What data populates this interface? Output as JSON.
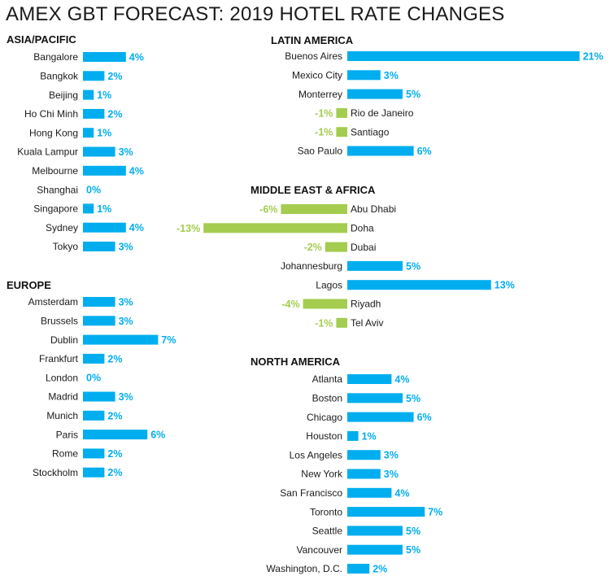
{
  "title": "AMEX GBT FORECAST: 2019 HOTEL RATE CHANGES",
  "colors": {
    "positive": "#00aeef",
    "negative": "#a4cc4f",
    "text": "#1a1a1a"
  },
  "chart_data": [
    {
      "type": "bar",
      "orientation": "horizontal",
      "title": "ASIA/PACIFIC",
      "unit": "%",
      "categories": [
        "Bangalore",
        "Bangkok",
        "Beijing",
        "Ho Chi Minh",
        "Hong Kong",
        "Kuala Lampur",
        "Melbourne",
        "Shanghai",
        "Singapore",
        "Sydney",
        "Tokyo"
      ],
      "values": [
        4,
        2,
        1,
        2,
        1,
        3,
        4,
        0,
        1,
        4,
        3
      ]
    },
    {
      "type": "bar",
      "orientation": "horizontal",
      "title": "EUROPE",
      "unit": "%",
      "categories": [
        "Amsterdam",
        "Brussels",
        "Dublin",
        "Frankfurt",
        "London",
        "Madrid",
        "Munich",
        "Paris",
        "Rome",
        "Stockholm"
      ],
      "values": [
        3,
        3,
        7,
        2,
        0,
        3,
        2,
        6,
        2,
        2
      ]
    },
    {
      "type": "bar",
      "orientation": "horizontal",
      "title": "LATIN AMERICA",
      "unit": "%",
      "categories": [
        "Buenos Aires",
        "Mexico City",
        "Monterrey",
        "Rio de Janeiro",
        "Santiago",
        "Sao Paulo"
      ],
      "values": [
        21,
        3,
        5,
        -1,
        -1,
        6
      ]
    },
    {
      "type": "bar",
      "orientation": "horizontal",
      "title": "MIDDLE EAST & AFRICA",
      "unit": "%",
      "categories": [
        "Abu Dhabi",
        "Doha",
        "Dubai",
        "Johannesburg",
        "Lagos",
        "Riyadh",
        "Tel Aviv"
      ],
      "values": [
        -6,
        -13,
        -2,
        5,
        13,
        -4,
        -1
      ]
    },
    {
      "type": "bar",
      "orientation": "horizontal",
      "title": "NORTH AMERICA",
      "unit": "%",
      "categories": [
        "Atlanta",
        "Boston",
        "Chicago",
        "Houston",
        "Los Angeles",
        "New York",
        "San Francisco",
        "Toronto",
        "Seattle",
        "Vancouver",
        "Washington, D.C."
      ],
      "values": [
        4,
        5,
        6,
        1,
        3,
        3,
        4,
        7,
        5,
        5,
        2
      ]
    }
  ]
}
